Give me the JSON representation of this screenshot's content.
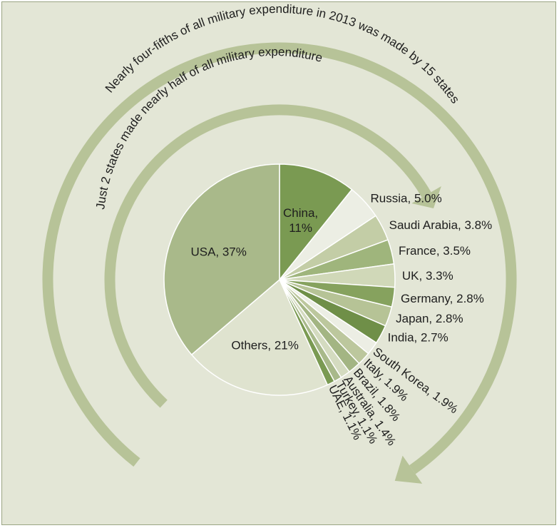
{
  "chart_data": {
    "type": "pie",
    "title": "",
    "slices": [
      {
        "label": "China",
        "text": "China,",
        "text2": "11%",
        "value": 11,
        "color": "#7a9a52"
      },
      {
        "label": "Russia",
        "text": "Russia, 5.0%",
        "value": 5.0,
        "color": "#eceee4"
      },
      {
        "label": "Saudi Arabia",
        "text": "Saudi Arabia, 3.8%",
        "value": 3.8,
        "color": "#c3cda6"
      },
      {
        "label": "France",
        "text": "France, 3.5%",
        "value": 3.5,
        "color": "#9fb57c"
      },
      {
        "label": "UK",
        "text": "UK, 3.3%",
        "value": 3.3,
        "color": "#d0d8b8"
      },
      {
        "label": "Germany",
        "text": "Germany, 2.8%",
        "value": 2.8,
        "color": "#86a25e"
      },
      {
        "label": "Japan",
        "text": "Japan, 2.8%",
        "value": 2.8,
        "color": "#b6c396"
      },
      {
        "label": "India",
        "text": "India, 2.7%",
        "value": 2.7,
        "color": "#6f8f48"
      },
      {
        "label": "South Korea",
        "text": "South Korea, 1.9%",
        "value": 1.9,
        "color": "#eceee4"
      },
      {
        "label": "Italy",
        "text": "Italy, 1.9%",
        "value": 1.9,
        "color": "#bcc79d"
      },
      {
        "label": "Brazil",
        "text": "Brazil, 1.8%",
        "value": 1.8,
        "color": "#a3b583"
      },
      {
        "label": "Australia",
        "text": "Australia, 1.4%",
        "value": 1.4,
        "color": "#d4dbc0"
      },
      {
        "label": "Turkey",
        "text": "Turkey, 1.1%",
        "value": 1.1,
        "color": "#a8b98a"
      },
      {
        "label": "UAE",
        "text": "UAE, 1.1%",
        "value": 1.1,
        "color": "#7a9a52"
      },
      {
        "label": "Others",
        "text": "Others, 21%",
        "value": 21,
        "color": "#dfe3cf"
      },
      {
        "label": "USA",
        "text": "USA, 37%",
        "value": 37,
        "color": "#a9b98a"
      }
    ],
    "annotations": {
      "outer_arc": "Nearly four-fifths of all military expenditure in 2013 was made by 15 states",
      "inner_arc": "Just 2 states made nearly half of all military expenditure"
    },
    "arrow_color": "#b7c398",
    "legend": "none"
  }
}
